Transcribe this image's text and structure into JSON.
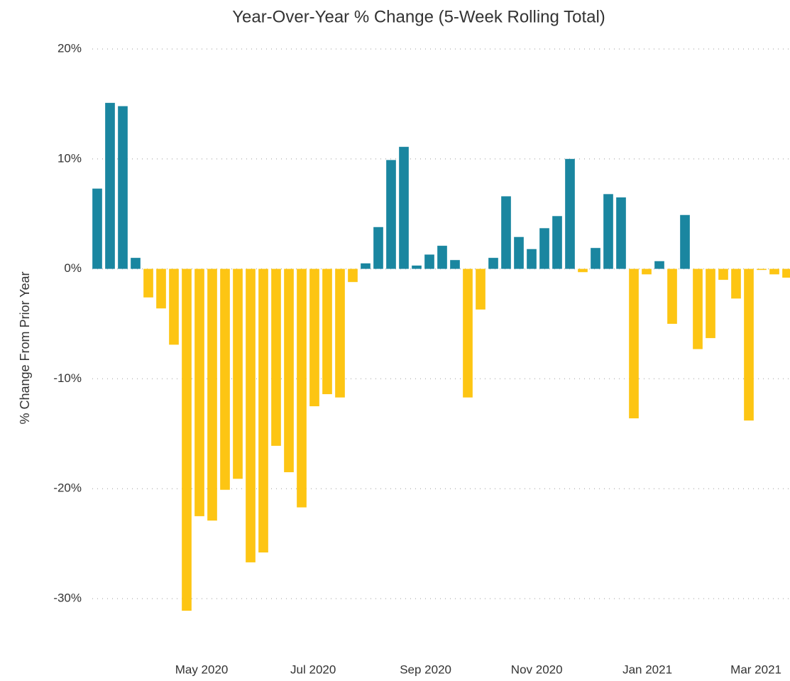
{
  "chart_data": {
    "type": "bar",
    "title": "Year-Over-Year % Change (5-Week Rolling Total)",
    "y_label": "% Change From Prior Year",
    "categories": [
      null,
      null,
      null,
      null,
      null,
      null,
      null,
      null,
      null,
      null,
      null,
      null,
      null,
      null,
      null,
      null,
      null,
      null,
      null,
      null,
      null,
      null,
      null,
      null,
      null,
      null,
      null,
      null,
      null,
      null,
      null,
      null,
      null,
      null,
      null,
      null,
      null,
      null,
      null,
      null,
      null,
      null,
      null,
      null,
      null,
      null,
      null,
      null,
      null,
      null,
      null,
      null,
      null,
      null,
      null
    ],
    "values": [
      7.3,
      15.1,
      14.8,
      1.0,
      -2.6,
      -3.6,
      -6.9,
      -31.1,
      -22.5,
      -22.9,
      -20.1,
      -19.1,
      -26.7,
      -25.8,
      -16.1,
      -18.5,
      -21.7,
      -12.5,
      -11.4,
      -11.7,
      -1.2,
      0.5,
      3.8,
      9.9,
      11.1,
      0.3,
      1.3,
      2.1,
      0.8,
      -11.7,
      -3.7,
      1.0,
      6.6,
      2.9,
      1.8,
      3.7,
      4.8,
      10.0,
      -0.3,
      1.9,
      6.8,
      6.5,
      -13.6,
      -0.5,
      0.7,
      -5.0,
      4.9,
      -7.3,
      -6.3,
      -1.0,
      -2.7,
      -13.8,
      -0.1,
      -0.5,
      -0.8
    ],
    "positive_color": "#1a86a0",
    "negative_color": "#fdc513",
    "xticks": [
      {
        "value": 8.17,
        "label": "May 2020"
      },
      {
        "value": 16.9,
        "label": "Jul 2020"
      },
      {
        "value": 25.7,
        "label": "Sep 2020"
      },
      {
        "value": 34.4,
        "label": "Nov 2020"
      },
      {
        "value": 43.06,
        "label": "Jan 2021"
      },
      {
        "value": 51.56,
        "label": "Mar 2021"
      }
    ],
    "ylim": [
      -33,
      20
    ],
    "yticks": [
      {
        "value": -30,
        "label": "-30%"
      },
      {
        "value": -20,
        "label": "-20%"
      },
      {
        "value": -10,
        "label": "-10%"
      },
      {
        "value": 0,
        "label": "0%"
      },
      {
        "value": 10,
        "label": "10%"
      },
      {
        "value": 20,
        "label": "20%"
      }
    ],
    "grid": true
  }
}
